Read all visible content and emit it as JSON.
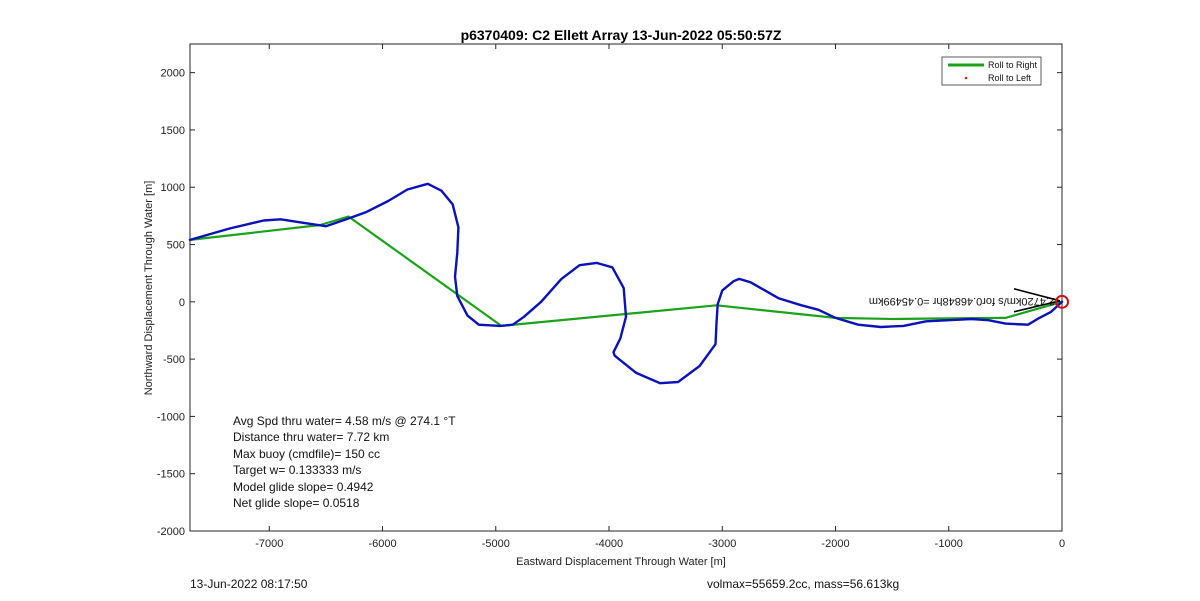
{
  "chart_data": {
    "type": "line",
    "title": "p6370409: C2 Ellett Array 13-Jun-2022 05:50:57Z",
    "xlabel": "Eastward Displacement Through Water [m]",
    "ylabel": "Northward Displacement Through Water [m]",
    "xlim": [
      -7700,
      0
    ],
    "ylim": [
      -2000,
      2250
    ],
    "xticks": [
      -7000,
      -6000,
      -5000,
      -4000,
      -3000,
      -2000,
      -1000,
      0
    ],
    "yticks": [
      2000,
      1500,
      1000,
      500,
      0,
      -500,
      -1000,
      -1500,
      -2000
    ],
    "grid": false,
    "legend_position": "top-right",
    "series": [
      {
        "name": "Roll to Right",
        "color": "#1aa31a",
        "x": [
          -7700,
          -6550,
          -6300,
          -4950,
          -3050,
          -2000,
          -1500,
          -1000,
          -500,
          0
        ],
        "y": [
          540,
          670,
          745,
          -210,
          -30,
          -140,
          -150,
          -145,
          -140,
          0
        ]
      },
      {
        "name": "Roll to Left",
        "color": "#dd2222",
        "x": [],
        "y": []
      },
      {
        "name": "",
        "color": "#0a12b8",
        "x": [
          -7700,
          -7350,
          -7050,
          -6900,
          -6700,
          -6500,
          -6320,
          -6150,
          -5950,
          -5780,
          -5600,
          -5480,
          -5380,
          -5330,
          -5340,
          -5360,
          -5340,
          -5250,
          -5150,
          -4960,
          -4850,
          -4750,
          -4600,
          -4420,
          -4260,
          -4110,
          -3970,
          -3870,
          -3850,
          -3900,
          -3960,
          -3950,
          -3760,
          -3550,
          -3390,
          -3200,
          -3060,
          -3050,
          -3040,
          -3000,
          -2900,
          -2850,
          -2750,
          -2500,
          -2300,
          -2150,
          -2000,
          -1800,
          -1600,
          -1400,
          -1200,
          -1000,
          -800,
          -650,
          -500,
          -300,
          -200,
          -100,
          0
        ],
        "y": [
          540,
          640,
          710,
          720,
          690,
          660,
          720,
          780,
          880,
          980,
          1030,
          970,
          850,
          650,
          430,
          220,
          50,
          -120,
          -200,
          -210,
          -200,
          -130,
          0,
          200,
          320,
          340,
          300,
          120,
          -130,
          -320,
          -440,
          -470,
          -620,
          -710,
          -700,
          -560,
          -370,
          -170,
          -20,
          100,
          180,
          200,
          170,
          30,
          -30,
          -70,
          -140,
          -200,
          -220,
          -210,
          -170,
          -160,
          -150,
          -160,
          -190,
          -200,
          -140,
          -90,
          0
        ]
      }
    ]
  },
  "legend": {
    "items": [
      {
        "label": "Roll to Right",
        "color": "#1aa31a",
        "style": "line"
      },
      {
        "label": "Roll to Left",
        "color": "#dd2222",
        "style": "dot"
      }
    ]
  },
  "annotation": {
    "text": "2.4720km/s for0.46848hr =0.45499km",
    "color": "#111111"
  },
  "end_marker": {
    "x": 0,
    "y": 0,
    "color": "#cc1111"
  },
  "stats": {
    "lines": [
      "Avg Spd thru water=  4.58 m/s @ 274.1 °T",
      "Distance thru water=  7.72 km",
      "Max buoy (cmdfile)= 150 cc",
      "Target w= 0.133333 m/s",
      "Model glide slope= 0.4942",
      "Net glide slope= 0.0518"
    ]
  },
  "footer": {
    "left": "13-Jun-2022 08:17:50",
    "right": "volmax=55659.2cc, mass=56.613kg"
  }
}
